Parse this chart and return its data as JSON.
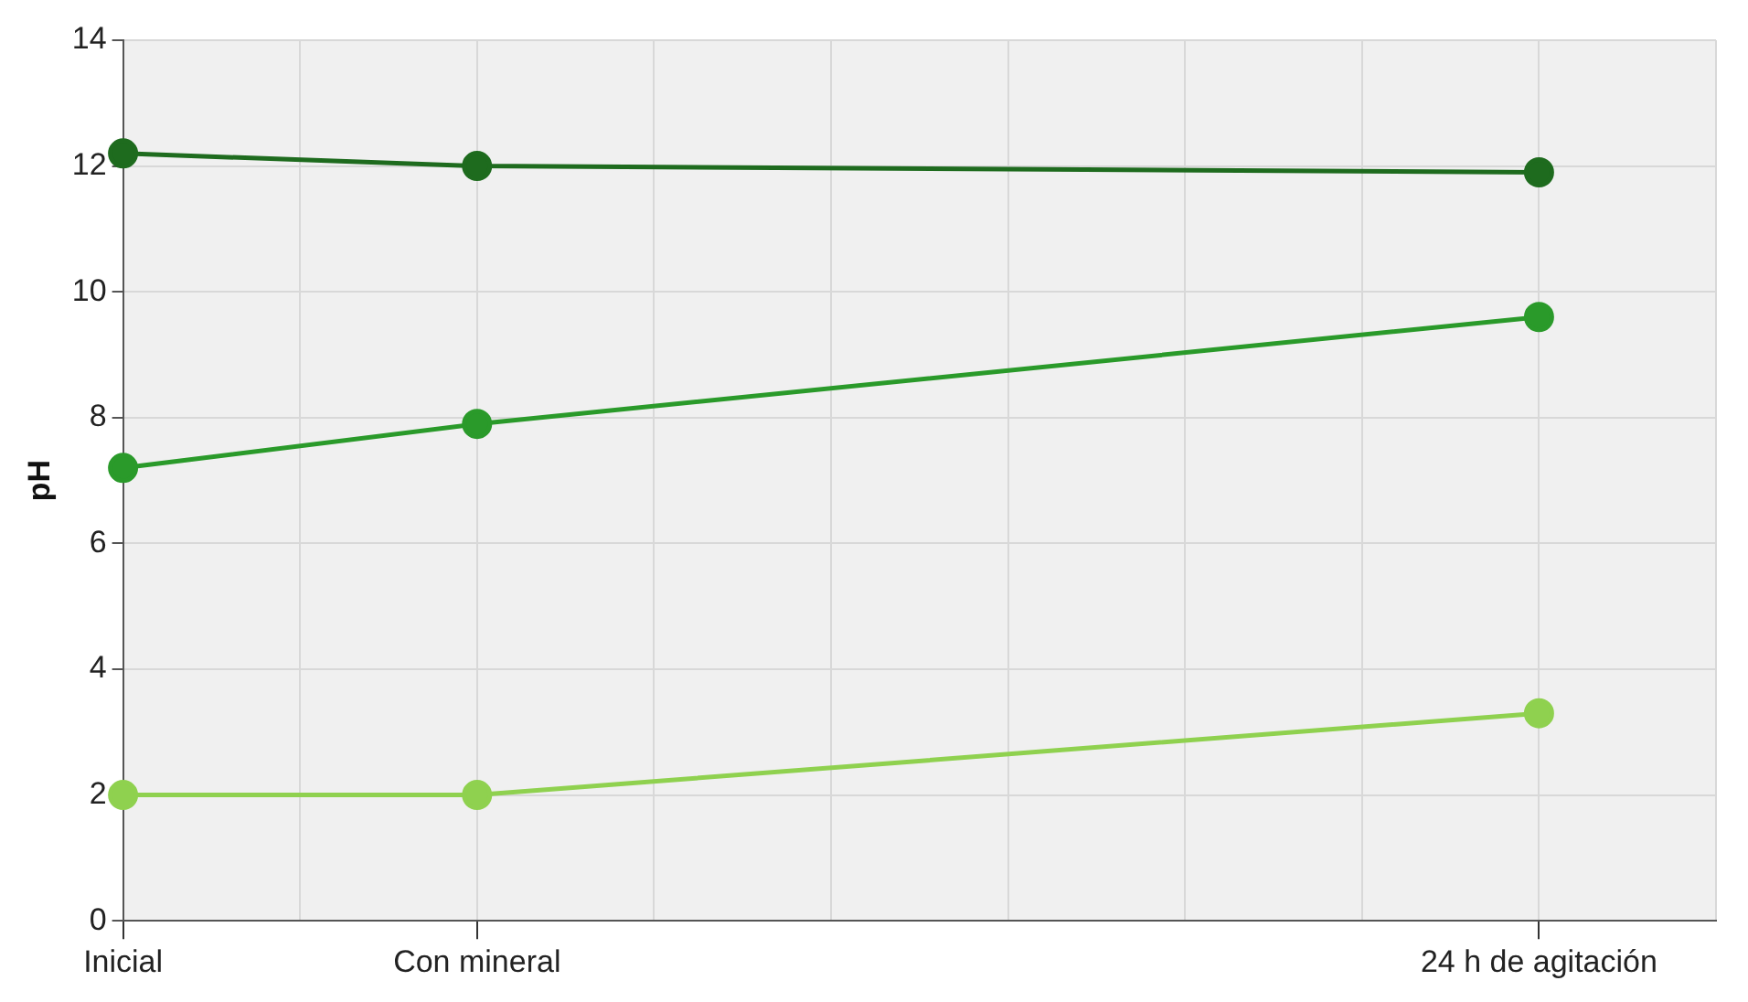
{
  "chart_data": {
    "type": "line",
    "ylabel": "pH",
    "categories": [
      "Inicial",
      null,
      "Con mineral",
      null,
      null,
      null,
      null,
      null,
      "24 h de agitación",
      null
    ],
    "ylim": [
      0,
      14
    ],
    "yticks": [
      0,
      2,
      4,
      6,
      8,
      10,
      12,
      14
    ],
    "series": [
      {
        "color": "#1e6b1e",
        "values": [
          12.2,
          null,
          12.0,
          null,
          null,
          null,
          null,
          null,
          11.9,
          null
        ]
      },
      {
        "color": "#2a9a2a",
        "values": [
          7.2,
          null,
          7.9,
          null,
          null,
          null,
          null,
          null,
          9.6,
          null
        ]
      },
      {
        "color": "#8fd14f",
        "values": [
          2.0,
          null,
          2.0,
          null,
          null,
          null,
          null,
          null,
          3.3,
          null
        ]
      }
    ],
    "grid": true,
    "legend": false,
    "marker": "circle",
    "line_style": "solid"
  }
}
